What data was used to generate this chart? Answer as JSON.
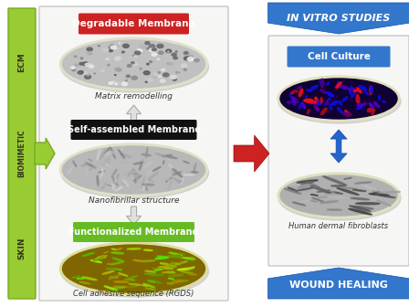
{
  "bg_color": "#ffffff",
  "left_panel_bg": "#f8f8f8",
  "right_panel_bg": "#f8f8f8",
  "degradable_label": "Degradable Membrane",
  "degradable_bg": "#cc2222",
  "self_assembled_label": "Self-assembled Membrane",
  "self_assembled_bg": "#111111",
  "functionalized_label": "Functionalized Membrane",
  "functionalized_bg": "#66bb22",
  "matrix_caption": "Matrix remodelling",
  "nanofibrillar_caption": "Nanofibrillar structure",
  "cell_adhesive_caption": "Cell adhesive sequence (RGDS)",
  "ecm_label": "ECM",
  "biomimetic_label": "BIOMIMETIC",
  "skin_label": "SKIN",
  "green_bar_color": "#99cc33",
  "green_bar_border": "#77aa22",
  "in_vitro_label": "IN VITRO STUDIES",
  "wound_healing_label": "WOUND HEALING",
  "cell_culture_label": "Cell Culture",
  "human_fibroblasts_label": "Human dermal fibroblasts",
  "blue_chevron_color": "#3377cc",
  "blue_arrow_color": "#2266bb",
  "red_arrow_color": "#cc2222",
  "panel_border": "#cccccc"
}
